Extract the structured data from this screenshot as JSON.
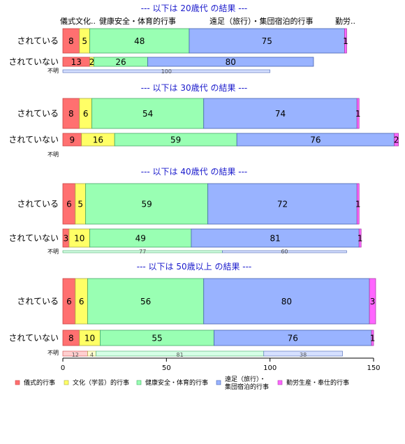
{
  "chart_data": {
    "type": "bar",
    "orientation": "horizontal",
    "stacked": true,
    "xlim": [
      0,
      150
    ],
    "x_ticks": [
      0,
      50,
      100,
      150
    ],
    "categories": [
      "儀式的行事",
      "文化（学芸）的行事",
      "健康安全・体育的行事",
      "遠足（旅行）・\n集団宿泊的行事",
      "勤労生産・奉仕的行事"
    ],
    "colors": [
      "#ff7070",
      "#ffff66",
      "#99ffb3",
      "#99b3ff",
      "#ff66ff"
    ],
    "thin_colors": [
      "#ffd0d0",
      "#ffffd0",
      "#d6ffe6",
      "#d6e0ff",
      "#ffd0ff"
    ],
    "header_labels": [
      "儀式文化..",
      "健康安全・体育的行事",
      "遠足（旅行）・集団宿泊的行事",
      "勤労.."
    ],
    "row_labels": {
      "yes": "されている",
      "no": "されていない",
      "unknown": "不明"
    },
    "groups": [
      {
        "title": "--- 以下は 20歳代 の結果 ---",
        "rows": {
          "yes": [
            8,
            5,
            48,
            75,
            1
          ],
          "no": [
            13,
            2,
            26,
            80,
            0
          ],
          "unknown": [
            0,
            0,
            0,
            100,
            0
          ]
        },
        "unknown_labels": [
          "",
          "",
          "",
          "100",
          ""
        ]
      },
      {
        "title": "--- 以下は 30歳代 の結果 ---",
        "rows": {
          "yes": [
            8,
            6,
            54,
            74,
            1
          ],
          "no": [
            9,
            16,
            59,
            76,
            2
          ],
          "unknown": [
            0,
            0,
            0,
            0,
            0
          ]
        },
        "unknown_labels": [
          "",
          "",
          "",
          "",
          ""
        ]
      },
      {
        "title": "--- 以下は 40歳代 の結果 ---",
        "rows": {
          "yes": [
            6,
            5,
            59,
            72,
            1
          ],
          "no": [
            3,
            10,
            49,
            81,
            1
          ],
          "unknown": [
            0,
            0,
            77,
            60,
            0
          ]
        },
        "unknown_labels": [
          "",
          "",
          "77",
          "60",
          ""
        ]
      },
      {
        "title": "--- 以下は 50歳以上 の結果 ---",
        "rows": {
          "yes": [
            6,
            6,
            56,
            80,
            3
          ],
          "no": [
            8,
            10,
            55,
            76,
            1
          ],
          "unknown": [
            12,
            4,
            81,
            38,
            0
          ]
        },
        "unknown_labels": [
          "12",
          "4",
          "81",
          "38",
          ""
        ]
      }
    ]
  }
}
